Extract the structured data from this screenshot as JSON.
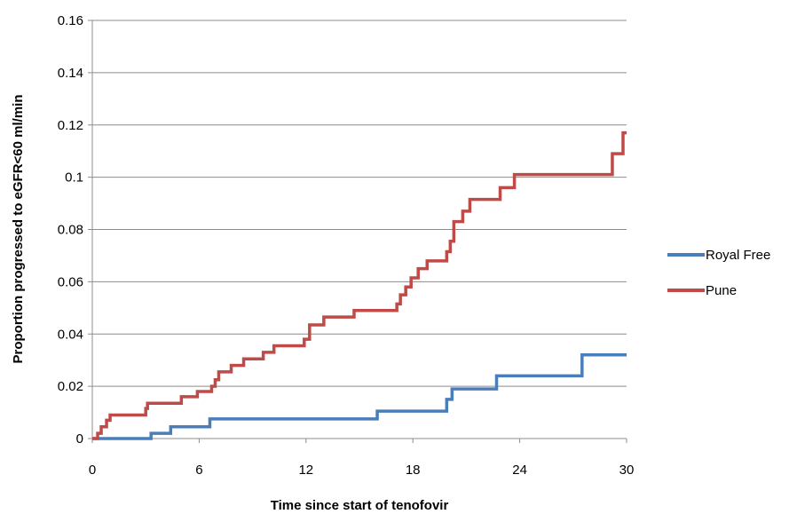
{
  "chart_data": {
    "type": "line",
    "title": "",
    "xlabel": "Time since start of tenofovir",
    "ylabel": "Proportion progressed to eGFR<60 ml/min",
    "xlim": [
      0,
      30
    ],
    "ylim": [
      0,
      0.16
    ],
    "x_ticks": [
      0,
      6,
      12,
      18,
      24,
      30
    ],
    "x_tick_labels": [
      "0",
      "6",
      "12",
      "18",
      "24",
      "30"
    ],
    "y_ticks": [
      0,
      0.02,
      0.04,
      0.06,
      0.08,
      0.1,
      0.12,
      0.14,
      0.16
    ],
    "y_tick_labels": [
      "0",
      "0.02",
      "0.04",
      "0.06",
      "0.08",
      "0.1",
      "0.12",
      "0.14",
      "0.16"
    ],
    "grid": true,
    "legend_position": "right",
    "step": true,
    "series": [
      {
        "name": "Royal Free",
        "color": "#4a7ebb",
        "points": [
          [
            0,
            0
          ],
          [
            3.3,
            0.002
          ],
          [
            4.4,
            0.0045
          ],
          [
            6.6,
            0.0075
          ],
          [
            16.0,
            0.0105
          ],
          [
            19.9,
            0.015
          ],
          [
            20.2,
            0.019
          ],
          [
            22.7,
            0.024
          ],
          [
            27.5,
            0.032
          ],
          [
            30.0,
            0.032
          ]
        ]
      },
      {
        "name": "Pune",
        "color": "#be4b48",
        "points": [
          [
            0,
            0
          ],
          [
            0.3,
            0.002
          ],
          [
            0.5,
            0.0045
          ],
          [
            0.8,
            0.007
          ],
          [
            1.0,
            0.009
          ],
          [
            3.0,
            0.0115
          ],
          [
            3.1,
            0.0135
          ],
          [
            5.0,
            0.016
          ],
          [
            5.9,
            0.018
          ],
          [
            6.7,
            0.02
          ],
          [
            6.9,
            0.0225
          ],
          [
            7.1,
            0.0255
          ],
          [
            7.8,
            0.028
          ],
          [
            8.5,
            0.0305
          ],
          [
            9.6,
            0.033
          ],
          [
            10.2,
            0.0355
          ],
          [
            11.9,
            0.038
          ],
          [
            12.2,
            0.0435
          ],
          [
            13.0,
            0.0465
          ],
          [
            14.7,
            0.049
          ],
          [
            17.1,
            0.0515
          ],
          [
            17.3,
            0.055
          ],
          [
            17.6,
            0.058
          ],
          [
            17.9,
            0.0615
          ],
          [
            18.3,
            0.065
          ],
          [
            18.8,
            0.068
          ],
          [
            19.9,
            0.0715
          ],
          [
            20.1,
            0.0755
          ],
          [
            20.3,
            0.083
          ],
          [
            20.8,
            0.087
          ],
          [
            21.2,
            0.0915
          ],
          [
            22.9,
            0.096
          ],
          [
            23.7,
            0.101
          ],
          [
            29.2,
            0.109
          ],
          [
            29.8,
            0.117
          ],
          [
            30.0,
            0.117
          ]
        ]
      }
    ]
  }
}
